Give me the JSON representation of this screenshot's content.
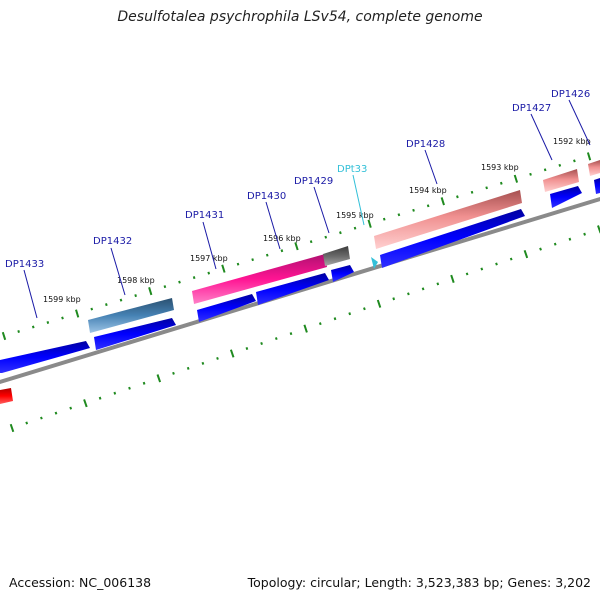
{
  "header": {
    "title": "Desulfotalea psychrophila LSv54, complete genome"
  },
  "footer": {
    "accession": "Accession: NC_006138",
    "topology": "Topology: circular; Length: 3,523,383 bp; Genes: 3,202"
  },
  "colors": {
    "cds": "#0000ff",
    "trna": "#33c0d8",
    "backbone": "#888888",
    "tick": "#1f8a1f",
    "label": "#1a1aa6",
    "feature_salmon": "#f08080",
    "feature_pink": "#ff1493",
    "feature_steelblue": "#4682b4",
    "feature_gray": "#696969",
    "feature_red": "#ff0000"
  },
  "tick_labels": [
    {
      "text": "1599 kbp",
      "kbp": 1599
    },
    {
      "text": "1598 kbp",
      "kbp": 1598
    },
    {
      "text": "1597 kbp",
      "kbp": 1597
    },
    {
      "text": "1596 kbp",
      "kbp": 1596
    },
    {
      "text": "1595 kbp",
      "kbp": 1595
    },
    {
      "text": "1594 kbp",
      "kbp": 1594
    },
    {
      "text": "1593 kbp",
      "kbp": 1593
    },
    {
      "text": "1592 kbp",
      "kbp": 1592
    }
  ],
  "genes": [
    {
      "label": "DP1433",
      "type": "cds"
    },
    {
      "label": "DP1432",
      "type": "cds"
    },
    {
      "label": "DP1431",
      "type": "cds"
    },
    {
      "label": "DP1430",
      "type": "cds"
    },
    {
      "label": "DP1429",
      "type": "cds"
    },
    {
      "label": "DPt33",
      "type": "trna"
    },
    {
      "label": "DP1428",
      "type": "cds"
    },
    {
      "label": "DP1427",
      "type": "cds"
    },
    {
      "label": "DP1426",
      "type": "cds"
    }
  ]
}
